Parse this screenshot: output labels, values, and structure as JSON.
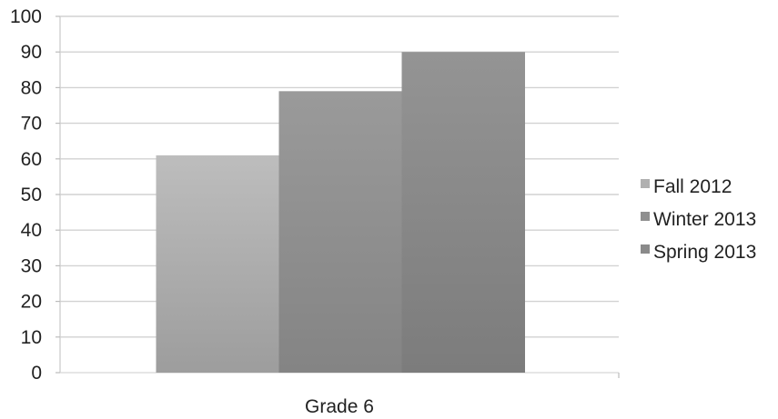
{
  "chart_data": {
    "type": "bar",
    "categories": [
      "Grade 6"
    ],
    "series": [
      {
        "name": "Fall 2012",
        "values": [
          61
        ],
        "color": "#b0b0b0"
      },
      {
        "name": "Winter 2013",
        "values": [
          79
        ],
        "color": "#8f8f8f"
      },
      {
        "name": "Spring 2013",
        "values": [
          90
        ],
        "color": "#8a8a8a"
      }
    ],
    "ylim": [
      0,
      100
    ],
    "yticks": [
      0,
      10,
      20,
      30,
      40,
      50,
      60,
      70,
      80,
      90,
      100
    ],
    "grid": true,
    "legend_position": "right",
    "title": "",
    "xlabel": "",
    "ylabel": ""
  }
}
